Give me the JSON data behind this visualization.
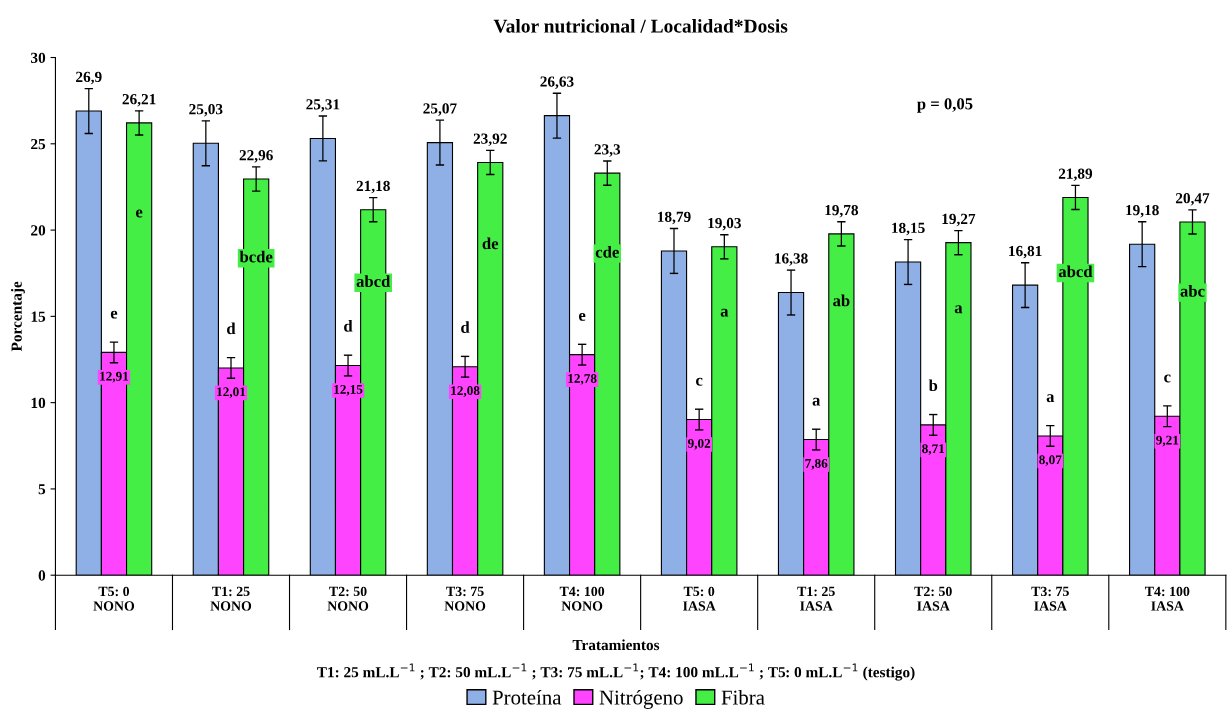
{
  "chart_data": {
    "type": "bar",
    "title": "Valor nutricional / Localidad*Dosis",
    "xlabel": "Tratamientos",
    "ylabel": "Porcentaje",
    "categories": [
      "T5: 0\nNONO",
      "T1: 25\nNONO",
      "T2: 50\nNONO",
      "T3: 75\nNONO",
      "T4: 100\nNONO",
      "T5: 0\nIASA",
      "T1: 25\nIASA",
      "T2: 50\nIASA",
      "T3: 75\nIASA",
      "T4: 100\nIASA"
    ],
    "series": [
      {
        "name": "Proteína",
        "color": "#8fb0e6",
        "values": [
          26.9,
          25.03,
          25.31,
          25.07,
          26.63,
          18.79,
          16.38,
          18.15,
          16.81,
          19.18
        ],
        "value_labels": [
          "26,9",
          "25,03",
          "25,31",
          "25,07",
          "26,63",
          "18,79",
          "16,38",
          "18,15",
          "16,81",
          "19,18"
        ],
        "errors": [
          1.3,
          1.3,
          1.3,
          1.3,
          1.3,
          1.3,
          1.3,
          1.3,
          1.3,
          1.3
        ]
      },
      {
        "name": "Nitrógeno",
        "color": "#ff44ff",
        "values": [
          12.91,
          12.01,
          12.15,
          12.08,
          12.78,
          9.02,
          7.86,
          8.71,
          8.07,
          9.21
        ],
        "value_labels": [
          "12,91",
          "12,01",
          "12,15",
          "12,08",
          "12,78",
          "9,02",
          "7,86",
          "8,71",
          "8,07",
          "9,21"
        ],
        "errors": [
          0.6,
          0.6,
          0.6,
          0.6,
          0.6,
          0.6,
          0.6,
          0.6,
          0.6,
          0.6
        ]
      },
      {
        "name": "Fibra",
        "color": "#44ee44",
        "values": [
          26.21,
          22.96,
          21.18,
          23.92,
          23.3,
          19.03,
          19.78,
          19.27,
          21.89,
          20.47
        ],
        "value_labels": [
          "26,21",
          "22,96",
          "21,18",
          "23,92",
          "23,3",
          "19,03",
          "19,78",
          "19,27",
          "21,89",
          "20,47"
        ],
        "errors": [
          0.7,
          0.7,
          0.7,
          0.7,
          0.7,
          0.7,
          0.7,
          0.7,
          0.7,
          0.7
        ]
      }
    ],
    "ylim": [
      0,
      30
    ],
    "yticks": [
      0,
      5,
      10,
      15,
      20,
      25,
      30
    ],
    "grid": false,
    "legend": "bottom",
    "annotations": [
      "p = 0,05",
      "T1: 25 mL.L$^{−1}$ ; T2: 50 mL.L$^{−1}$ ; T3: 75 mL.L$^{−1}$; T4: 100 mL.L$^{−1}$ ; T5: 0 mL.L$^{−1}$ (testigo)",
      "e",
      "d",
      "d",
      "d",
      "e",
      "c",
      "a",
      "b",
      "a",
      "c",
      "e",
      "bcde",
      "abcd",
      "de",
      "cde",
      "a",
      "ab",
      "a",
      "abcd",
      "abc"
    ]
  }
}
